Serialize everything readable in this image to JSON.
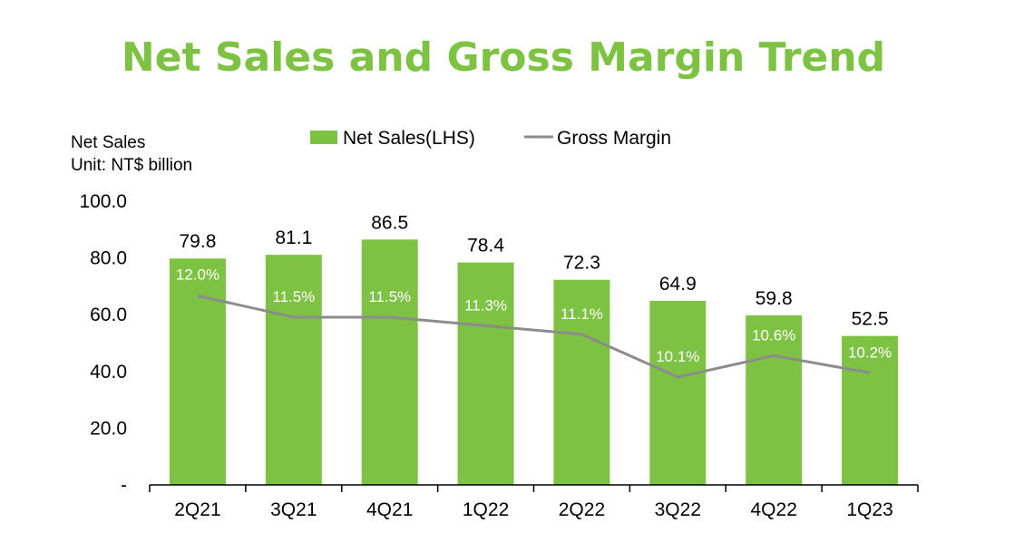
{
  "chart_data": {
    "type": "bar+line",
    "title": "Net Sales and Gross Margin Trend",
    "axis_note": [
      "Net Sales",
      "Unit: NT$ billion"
    ],
    "categories": [
      "2Q21",
      "3Q21",
      "4Q21",
      "1Q22",
      "2Q22",
      "3Q22",
      "4Q22",
      "1Q23"
    ],
    "y_ticks": [
      "-",
      "20.0",
      "40.0",
      "60.0",
      "80.0",
      "100.0"
    ],
    "ylim": [
      0,
      100
    ],
    "series": [
      {
        "name": "Net Sales(LHS)",
        "type": "bar",
        "color": "#7dc242",
        "values": [
          79.8,
          81.1,
          86.5,
          78.4,
          72.3,
          64.9,
          59.8,
          52.5
        ],
        "labels": [
          "79.8",
          "81.1",
          "86.5",
          "78.4",
          "72.3",
          "64.9",
          "59.8",
          "52.5"
        ]
      },
      {
        "name": "Gross Margin",
        "type": "line",
        "color": "#8c8c8c",
        "values": [
          12.0,
          11.5,
          11.5,
          11.3,
          11.1,
          10.1,
          10.6,
          10.2
        ],
        "labels": [
          "12.0%",
          "11.5%",
          "11.5%",
          "11.3%",
          "11.1%",
          "10.1%",
          "10.6%",
          "10.2%"
        ]
      }
    ],
    "legend_position": "top",
    "grid": false,
    "colors": {
      "title": "#7dc242",
      "bar": "#7dc242",
      "line": "#8c8c8c",
      "axis": "#000000"
    }
  }
}
